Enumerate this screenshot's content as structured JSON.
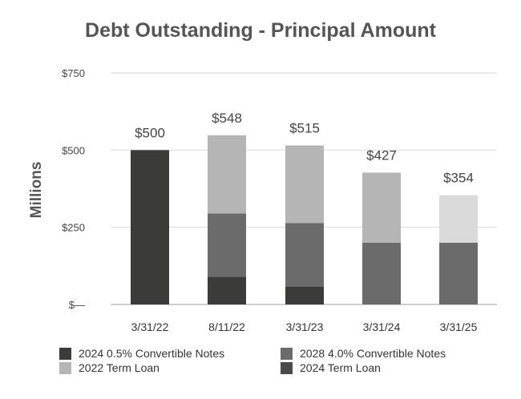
{
  "chart_data": {
    "type": "bar",
    "stacked": true,
    "title": "Debt Outstanding - Principal Amount",
    "ylabel": "Millions",
    "xlabel": "",
    "ylim": [
      0,
      750
    ],
    "grid": true,
    "legend_position": "bottom",
    "categories": [
      "3/31/22",
      "8/11/22",
      "3/31/23",
      "3/31/24",
      "3/31/25"
    ],
    "yticks": [
      {
        "value": 0,
        "label": "$—"
      },
      {
        "value": 250,
        "label": "$250"
      },
      {
        "value": 500,
        "label": "$500"
      },
      {
        "value": 750,
        "label": "$750"
      }
    ],
    "totals": [
      "$500",
      "$548",
      "$515",
      "$427",
      "$354"
    ],
    "totals_values": [
      500,
      548,
      515,
      427,
      354
    ],
    "series": [
      {
        "name": "2024 0.5% Convertible Notes",
        "color": "#3b3b3a",
        "values": [
          500,
          90,
          58,
          0,
          0
        ]
      },
      {
        "name": "2028 4.0% Convertible Notes",
        "color": "#6b6b6b",
        "values": [
          0,
          205,
          206,
          200,
          200
        ]
      },
      {
        "name": "2022 Term Loan",
        "color": "#b5b5b5",
        "values": [
          0,
          253,
          251,
          227,
          0
        ]
      },
      {
        "name": "2024 Term Loan",
        "color": "#dadada",
        "values": [
          0,
          0,
          0,
          0,
          154
        ]
      }
    ],
    "legend_swatch_colors": [
      "#3b3b3a",
      "#6b6b6b",
      "#b5b5b5",
      "#4a4a4a"
    ]
  }
}
